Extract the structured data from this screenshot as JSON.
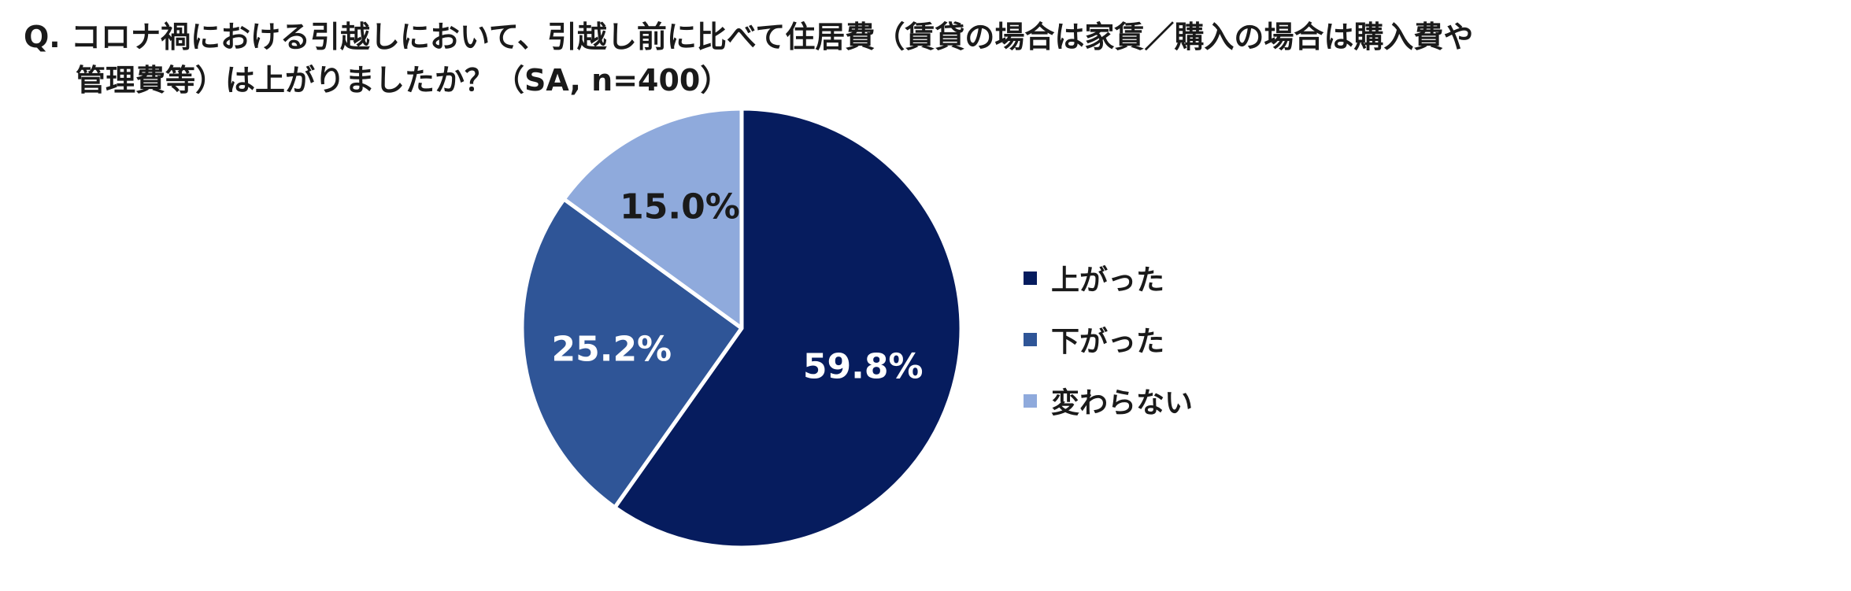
{
  "title": {
    "line1": "Q. コロナ禍における引越しにおいて、引越し前に比べて住居費（賃貸の場合は家賃／購入の場合は購入費や",
    "line2": "管理費等）は上がりましたか？（SA, n=400）"
  },
  "chart_data": {
    "type": "pie",
    "title": "Q. コロナ禍における引越しにおいて、引越し前に比べて住居費（賃貸の場合は家賃／購入の場合は購入費や管理費等）は上がりましたか？（SA, n=400）",
    "labels": [
      "上がった",
      "下がった",
      "変わらない"
    ],
    "values": [
      59.8,
      25.2,
      15.0
    ],
    "data_labels": [
      "59.8%",
      "25.2%",
      "15.0%"
    ],
    "colors": [
      "#061c5e",
      "#2f5597",
      "#8faadc"
    ],
    "label_colors": [
      "#ffffff",
      "#ffffff",
      "#1a1a1a"
    ],
    "start": "12 o'clock",
    "direction": "clockwise",
    "legend_position": "right"
  }
}
